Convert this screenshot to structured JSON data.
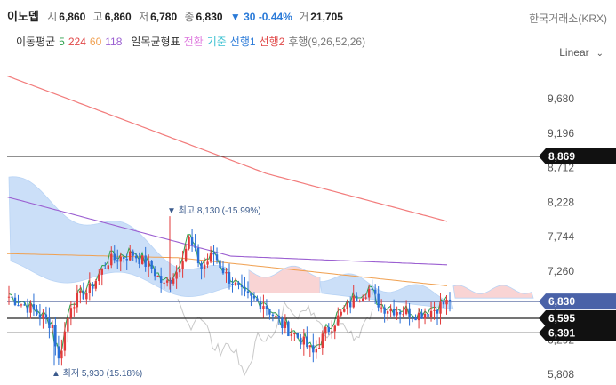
{
  "header": {
    "name": "이노뎁",
    "open_label": "시",
    "open": "6,860",
    "high_label": "고",
    "high": "6,860",
    "low_label": "저",
    "low": "6,780",
    "close_label": "종",
    "close": "6,830",
    "change": "▼ 30 -0.44%",
    "volume_label": "거",
    "volume": "21,705",
    "exchange": "한국거래소(KRX)"
  },
  "indicators": {
    "ma_label": "이동평균",
    "ma_periods": [
      "5",
      "224",
      "60",
      "118"
    ],
    "ichimoku_label": "일목균형표",
    "conversion": "전환",
    "base": "기준",
    "span1": "선행1",
    "span2": "선행2",
    "lagging": "후행(9,26,52,26)"
  },
  "scale_mode": "Linear",
  "chart_data": {
    "type": "candlestick",
    "y_ticks": [
      "9,680",
      "9,196",
      "8,712",
      "8,228",
      "7,744",
      "7,260",
      "6,776",
      "6,292",
      "5,808"
    ],
    "ylim": [
      5800,
      10000
    ],
    "horizontal_lines": [
      {
        "label": "8,869",
        "value": 8869
      },
      {
        "label": "6,595",
        "value": 6595
      },
      {
        "label": "6,391",
        "value": 6391
      }
    ],
    "current_price": {
      "label": "6,830",
      "value": 6830
    },
    "max_annotation": "최고 8,130 (-15.99%)",
    "min_annotation": "최저 5,930 (15.18%)",
    "colors": {
      "up": "#e23a3a",
      "down": "#2a6fd6",
      "ma5": "#2ca04c",
      "ma224": "#f27c7c",
      "ma60": "#f0a050",
      "ma118": "#9b5fd1",
      "cloud_bull": "#b9d4f5",
      "cloud_bear": "#f7c6c6",
      "lagging": "#c8c8c8"
    }
  }
}
